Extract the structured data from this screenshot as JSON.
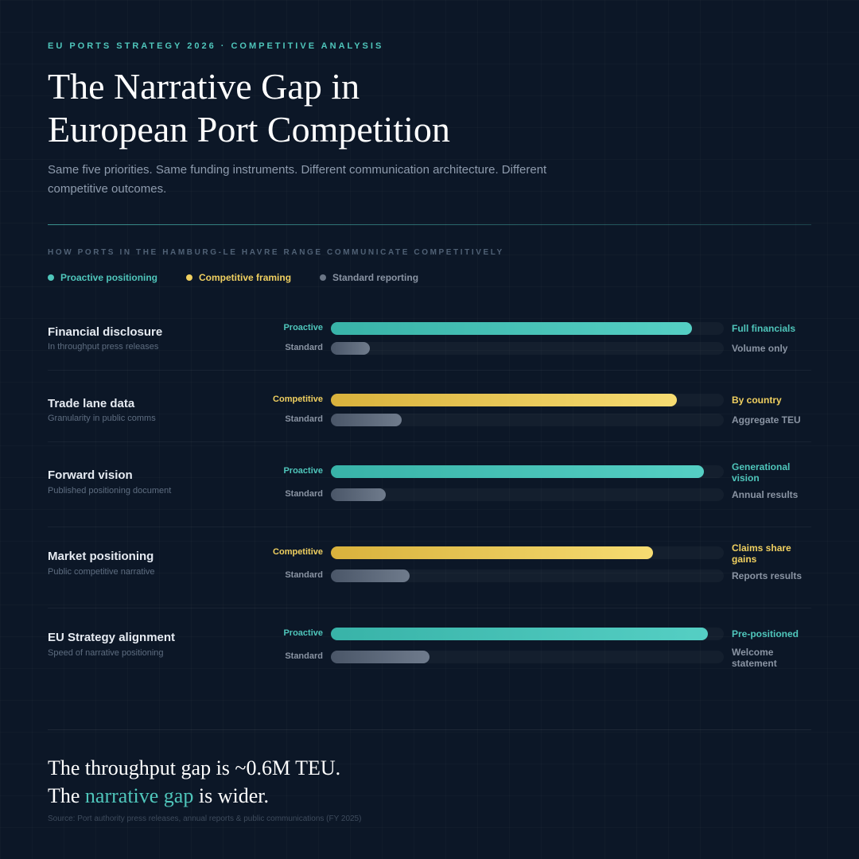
{
  "header": {
    "eyebrow": "EU PORTS STRATEGY 2026 · COMPETITIVE ANALYSIS",
    "title_line1": "The Narrative Gap in",
    "title_line2": "European Port Competition",
    "subtitle": "Same five priorities. Same funding instruments. Different communication architecture. Different competitive outcomes."
  },
  "section_label": "HOW PORTS IN THE HAMBURG-LE HAVRE RANGE COMMUNICATE COMPETITIVELY",
  "legend": [
    {
      "label": "Proactive positioning",
      "color": "#4fc6bb"
    },
    {
      "label": "Competitive framing",
      "color": "#f0d060"
    },
    {
      "label": "Standard reporting",
      "color": "#6b7686"
    }
  ],
  "colors": {
    "proactive": "#4fc6bb",
    "competitive": "#f0d060",
    "standard": "#6b7686",
    "accent": "#4fc6bb"
  },
  "chart_data": {
    "type": "bar",
    "scale": [
      0,
      1
    ],
    "rows": [
      {
        "title": "Financial disclosure",
        "subtitle": "In throughput press releases",
        "bars": [
          {
            "label": "Proactive",
            "kind": "proactive",
            "value": 0.92,
            "end_label": "Full financials"
          },
          {
            "label": "Standard",
            "kind": "standard",
            "value": 0.1,
            "end_label": "Volume only"
          }
        ]
      },
      {
        "title": "Trade lane data",
        "subtitle": "Granularity in public comms",
        "bars": [
          {
            "label": "Competitive",
            "kind": "competitive",
            "value": 0.88,
            "end_label": "By country"
          },
          {
            "label": "Standard",
            "kind": "standard",
            "value": 0.18,
            "end_label": "Aggregate TEU"
          }
        ]
      },
      {
        "title": "Forward vision",
        "subtitle": "Published positioning document",
        "bars": [
          {
            "label": "Proactive",
            "kind": "proactive",
            "value": 0.95,
            "end_label": "Generational vision"
          },
          {
            "label": "Standard",
            "kind": "standard",
            "value": 0.14,
            "end_label": "Annual results"
          }
        ]
      },
      {
        "title": "Market positioning",
        "subtitle": "Public competitive narrative",
        "bars": [
          {
            "label": "Competitive",
            "kind": "competitive",
            "value": 0.82,
            "end_label": "Claims share gains"
          },
          {
            "label": "Standard",
            "kind": "standard",
            "value": 0.2,
            "end_label": "Reports results"
          }
        ]
      },
      {
        "title": "EU Strategy alignment",
        "subtitle": "Speed of narrative positioning",
        "bars": [
          {
            "label": "Proactive",
            "kind": "proactive",
            "value": 0.96,
            "end_label": "Pre-positioned"
          },
          {
            "label": "Standard",
            "kind": "standard",
            "value": 0.25,
            "end_label": "Welcome statement"
          }
        ]
      }
    ]
  },
  "conclusion": {
    "line1": "The throughput gap is ~0.6M TEU.",
    "line2_pre": "The ",
    "line2_highlight": "narrative gap",
    "line2_post": " is wider."
  },
  "source": "Source: Port authority press releases, annual reports & public communications (FY 2025)"
}
